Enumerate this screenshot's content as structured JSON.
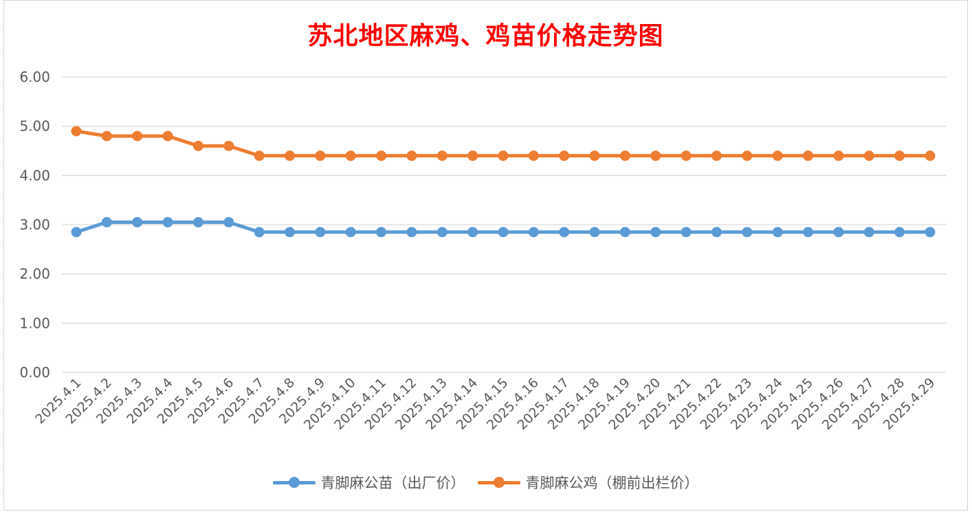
{
  "chart_data": {
    "type": "line",
    "title": "苏北地区麻鸡、鸡苗价格走势图",
    "categories": [
      "2025.4.1",
      "2025.4.2",
      "2025.4.3",
      "2025.4.4",
      "2025.4.5",
      "2025.4.6",
      "2025.4.7",
      "2025.4.8",
      "2025.4.9",
      "2025.4.10",
      "2025.4.11",
      "2025.4.12",
      "2025.4.13",
      "2025.4.14",
      "2025.4.15",
      "2025.4.16",
      "2025.4.17",
      "2025.4.18",
      "2025.4.19",
      "2025.4.20",
      "2025.4.21",
      "2025.4.22",
      "2025.4.23",
      "2025.4.24",
      "2025.4.25",
      "2025.4.26",
      "2025.4.27",
      "2025.4.28",
      "2025.4.29"
    ],
    "series": [
      {
        "name": "青脚麻公苗（出厂价）",
        "color": "#5b9bd5",
        "values": [
          2.85,
          3.05,
          3.05,
          3.05,
          3.05,
          3.05,
          2.85,
          2.85,
          2.85,
          2.85,
          2.85,
          2.85,
          2.85,
          2.85,
          2.85,
          2.85,
          2.85,
          2.85,
          2.85,
          2.85,
          2.85,
          2.85,
          2.85,
          2.85,
          2.85,
          2.85,
          2.85,
          2.85,
          2.85
        ]
      },
      {
        "name": "青脚麻公鸡（棚前出栏价）",
        "color": "#ed7d31",
        "values": [
          4.9,
          4.8,
          4.8,
          4.8,
          4.6,
          4.6,
          4.4,
          4.4,
          4.4,
          4.4,
          4.4,
          4.4,
          4.4,
          4.4,
          4.4,
          4.4,
          4.4,
          4.4,
          4.4,
          4.4,
          4.4,
          4.4,
          4.4,
          4.4,
          4.4,
          4.4,
          4.4,
          4.4,
          4.4
        ]
      }
    ],
    "ylim": [
      0,
      6
    ],
    "yticks": [
      "0.00",
      "1.00",
      "2.00",
      "3.00",
      "4.00",
      "5.00",
      "6.00"
    ],
    "grid": true,
    "legend_position": "bottom",
    "title_color": "#ff0000",
    "xlabel": "",
    "ylabel": ""
  }
}
